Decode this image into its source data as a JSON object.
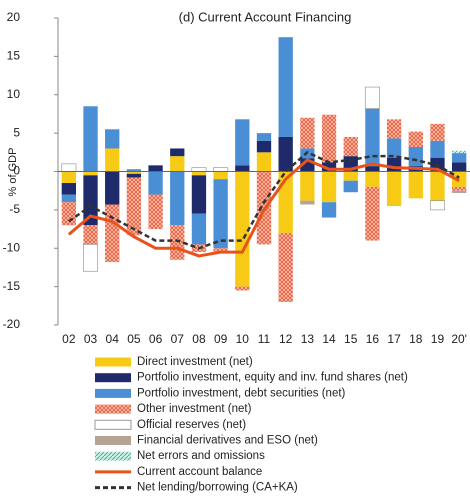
{
  "chart_data": {
    "type": "bar",
    "stacked": true,
    "title": "(d) Current Account Financing",
    "y_label": "% of GDP",
    "categories": [
      "02",
      "03",
      "04",
      "05",
      "06",
      "07",
      "08",
      "09",
      "10",
      "11",
      "12",
      "13",
      "14",
      "15",
      "16",
      "17",
      "18",
      "19",
      "20'"
    ],
    "ylim": [
      -20,
      20
    ],
    "yticks": [
      -20,
      -15,
      -10,
      -5,
      0,
      5,
      10,
      15,
      20
    ],
    "series": [
      {
        "name": "Direct investment (net)",
        "color": "#F7CB15",
        "values": [
          -1.5,
          -0.5,
          3,
          -0.3,
          0,
          2,
          -0.5,
          -1,
          -15,
          2.5,
          -8,
          -3.8,
          -4,
          -1.2,
          -2,
          -4.5,
          -3.5,
          -3.8,
          -2
        ]
      },
      {
        "name": "Portfolio investment, equity and inv. fund shares (net)",
        "color": "#1F2A6B",
        "values": [
          -1.5,
          -6.5,
          -4.3,
          -0.5,
          0.8,
          1,
          -5,
          0,
          0.8,
          1.5,
          4.5,
          1.7,
          1.2,
          2,
          0.7,
          1.8,
          0.7,
          1.8,
          1.2
        ]
      },
      {
        "name": "Portfolio investment, debt securities (net)",
        "color": "#4A8FD6",
        "values": [
          -1,
          8.5,
          2.5,
          0.3,
          -3,
          -7,
          -4,
          -9,
          6,
          1,
          13,
          1.3,
          -2,
          -1.5,
          7.5,
          2.5,
          2.5,
          2.2,
          1.2
        ]
      },
      {
        "name": "Other investment (net)",
        "color": "#F9C3AE",
        "pattern": "crosshatch",
        "pattern_color": "#E8593C",
        "values": [
          -3,
          -2.5,
          -7.5,
          -7.5,
          -4.5,
          -4.5,
          -1,
          -0.5,
          -0.5,
          -9.5,
          -9,
          4,
          6.2,
          2.5,
          -7,
          2.5,
          2,
          2.2,
          -0.5
        ]
      },
      {
        "name": "Official reserves (net)",
        "color": "#FFFFFF",
        "stroke": "#999999",
        "values": [
          1,
          -3.5,
          0,
          0,
          0,
          0,
          0.5,
          0.5,
          0,
          0,
          0,
          0,
          0,
          0,
          2.8,
          0,
          0,
          -1.2,
          0
        ]
      },
      {
        "name": "Financial derivatives and ESO (net)",
        "color": "#B5A393",
        "values": [
          0,
          0,
          0,
          0,
          0,
          0,
          0,
          0,
          0,
          0,
          0,
          -0.5,
          0,
          0,
          0,
          0,
          0,
          0,
          -0.3
        ]
      },
      {
        "name": "Net errors and omissions",
        "color": "#CFEFE6",
        "pattern": "diagonal",
        "pattern_color": "#2FAA8A",
        "values": [
          0,
          0,
          0,
          0,
          0,
          0,
          0,
          0,
          0,
          0,
          0,
          0,
          0,
          0,
          0,
          0,
          0,
          0,
          0.3
        ]
      }
    ],
    "lines": [
      {
        "name": "Current account balance",
        "color": "#E8531D",
        "dash": "solid",
        "values": [
          -8.2,
          -5.8,
          -6.5,
          -8.5,
          -10,
          -10,
          -11,
          -10.5,
          -10.5,
          -5,
          -1,
          1.5,
          0.3,
          0.3,
          1,
          0.5,
          0.4,
          0.3,
          -1.2
        ]
      },
      {
        "name": "Net lending/borrowing (CA+KA)",
        "color": "#333333",
        "dash": "dashed",
        "values": [
          -6.5,
          -4.5,
          -6,
          -7.5,
          -9,
          -9,
          -10,
          -9,
          -9,
          -4,
          0,
          2.5,
          1.2,
          1.5,
          2,
          2,
          1.5,
          0.8,
          -0.8
        ]
      }
    ]
  }
}
